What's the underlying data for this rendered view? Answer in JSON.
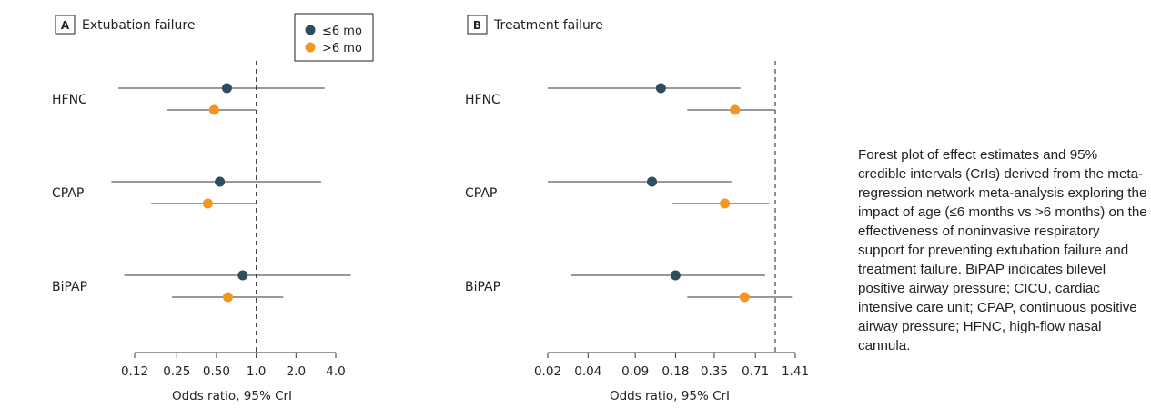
{
  "colors": {
    "le6": "#2e4d5e",
    "gt6": "#f3961f",
    "line": "#333333",
    "ref": "#444444"
  },
  "legend": {
    "le6": "≤6 mo",
    "gt6": ">6 mo"
  },
  "caption": "Forest plot of effect estimates and 95% credible intervals (CrIs) derived from the meta-regression network meta-analysis exploring the impact of age (≤6 months vs >6 months) on the effectiveness of noninvasive respiratory support for preventing extubation failure and treatment failure. BiPAP indicates bilevel positive airway pressure; CICU, cardiac intensive care unit; CPAP, continuous positive airway pressure; HFNC, high-flow nasal cannula.",
  "chart_data": [
    {
      "type": "forest",
      "panel": "A",
      "title": "Extubation failure",
      "xlabel": "Odds ratio, 95% CrI",
      "xscale": "log",
      "xticks": [
        0.12,
        0.25,
        0.5,
        1.0,
        2.0,
        4.0
      ],
      "xtick_labels": [
        "0.12",
        "0.25",
        "0.50",
        "1.0",
        "2.0",
        "4.0"
      ],
      "reference_line": 1.0,
      "categories": [
        "HFNC",
        "CPAP",
        "BiPAP"
      ],
      "series": [
        {
          "name": "≤6 mo",
          "estimate": [
            0.6,
            0.53,
            0.79
          ],
          "lower": [
            0.09,
            0.08,
            0.1
          ],
          "upper": [
            3.3,
            3.1,
            5.2
          ]
        },
        {
          "name": ">6 mo",
          "estimate": [
            0.48,
            0.43,
            0.61
          ],
          "lower": [
            0.21,
            0.16,
            0.23
          ],
          "upper": [
            1.0,
            1.0,
            1.6
          ]
        }
      ]
    },
    {
      "type": "forest",
      "panel": "B",
      "title": "Treatment failure",
      "xlabel": "Odds ratio, 95% CrI",
      "xscale": "log",
      "xticks": [
        0.02,
        0.04,
        0.09,
        0.18,
        0.35,
        0.71,
        1.41
      ],
      "xtick_labels": [
        "0.02",
        "0.04",
        "0.09",
        "0.18",
        "0.35",
        "0.71",
        "1.41"
      ],
      "reference_line": 1.0,
      "categories": [
        "HFNC",
        "CPAP",
        "BiPAP"
      ],
      "series": [
        {
          "name": "≤6 mo",
          "estimate": [
            0.14,
            0.12,
            0.18
          ],
          "lower": [
            0.02,
            0.02,
            0.03
          ],
          "upper": [
            0.55,
            0.47,
            0.84
          ]
        },
        {
          "name": ">6 mo",
          "estimate": [
            0.5,
            0.42,
            0.59
          ],
          "lower": [
            0.22,
            0.17,
            0.22
          ],
          "upper": [
            1.0,
            0.9,
            1.33
          ]
        }
      ]
    }
  ]
}
